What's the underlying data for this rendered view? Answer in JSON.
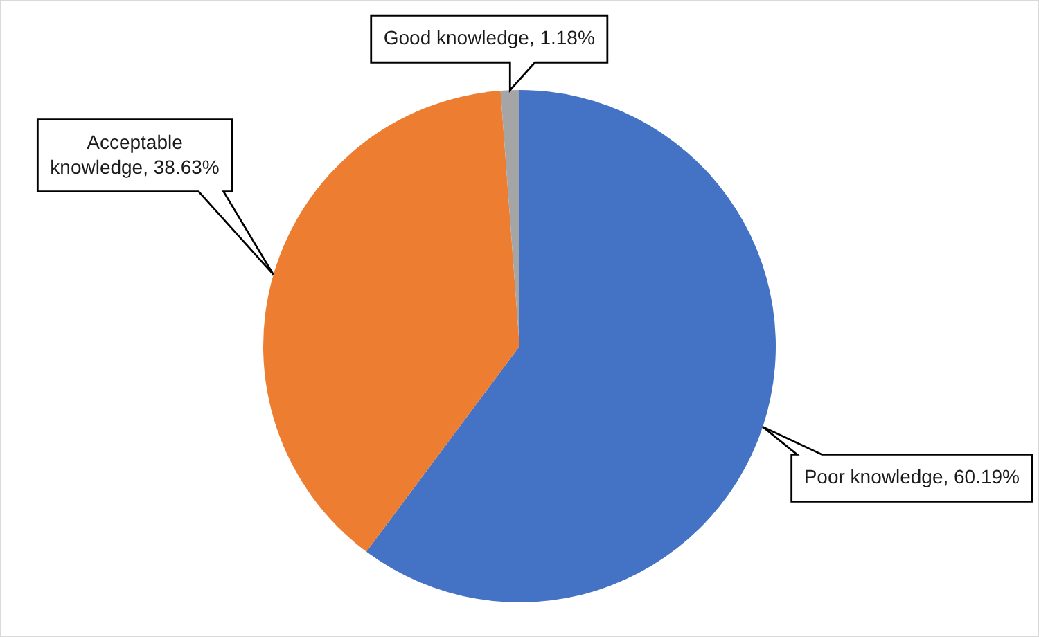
{
  "chart_data": {
    "type": "pie",
    "categories": [
      "Poor knowledge",
      "Acceptable knowledge",
      "Good knowledge"
    ],
    "values": [
      60.19,
      38.63,
      1.18
    ],
    "colors": [
      "#4472c4",
      "#ed7d31",
      "#a5a5a5"
    ],
    "value_labels": [
      "60.19%",
      "38.63%",
      "1.18%"
    ]
  }
}
